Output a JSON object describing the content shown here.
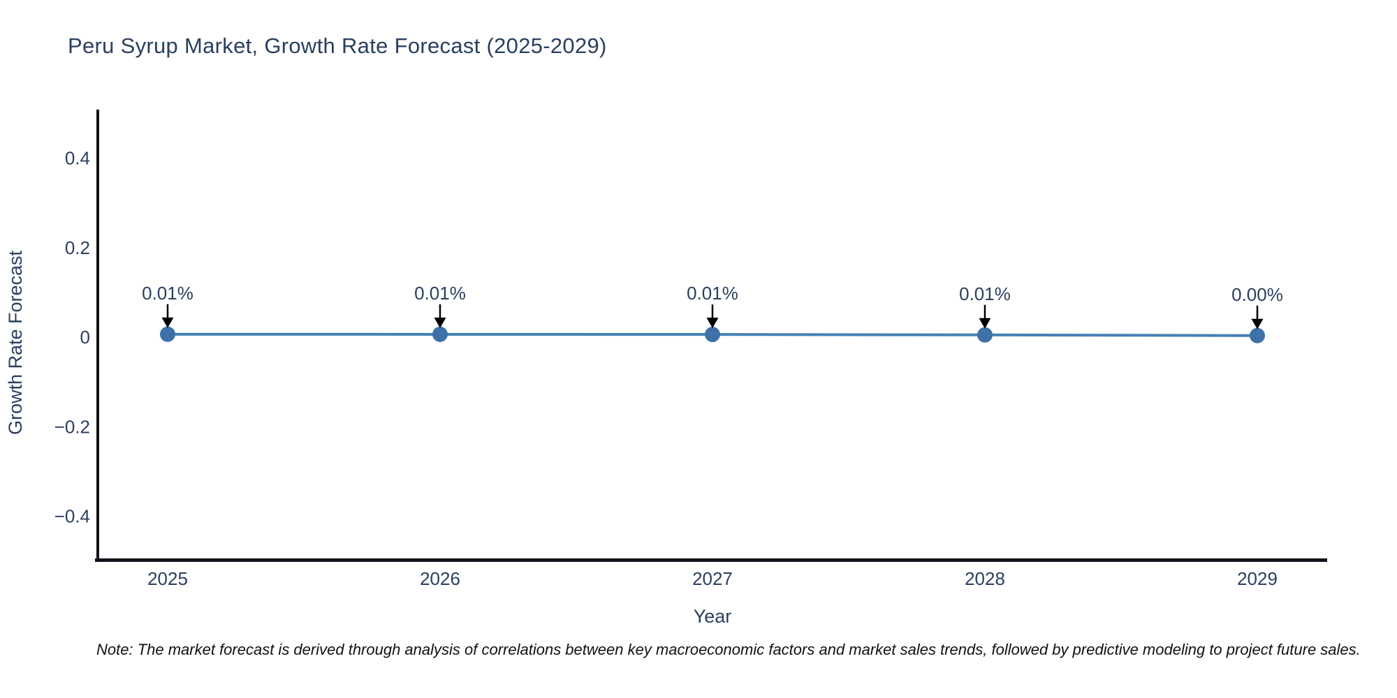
{
  "title": "Peru Syrup Market, Growth Rate Forecast (2025-2029)",
  "note": "Note: The market forecast is derived through analysis of correlations between key macroeconomic factors and market sales trends, followed by predictive modeling to project future sales.",
  "chart_data": {
    "type": "line",
    "title": "Peru Syrup Market, Growth Rate Forecast (2025-2029)",
    "xlabel": "Year",
    "ylabel": "Growth Rate Forecast",
    "x": [
      2025,
      2026,
      2027,
      2028,
      2029
    ],
    "series": [
      {
        "name": "Growth Rate Forecast",
        "values": [
          0.0065,
          0.0063,
          0.006,
          0.005,
          0.0035
        ],
        "point_labels": [
          "0.01%",
          "0.01%",
          "0.01%",
          "0.01%",
          "0.00%"
        ]
      }
    ],
    "xtick_labels": [
      "2025",
      "2026",
      "2027",
      "2028",
      "2029"
    ],
    "yticks": [
      -0.4,
      -0.2,
      0,
      0.2,
      0.4
    ],
    "ytick_labels": [
      "−0.4",
      "−0.2",
      "0",
      "0.2",
      "0.4"
    ],
    "ylim": [
      -0.5,
      0.51
    ],
    "grid": false,
    "legend_position": "none",
    "annotation_style": "down-arrow",
    "colors": {
      "line": "#4580b4",
      "marker": "#3d71a8",
      "axis": "#11131a",
      "text": "#2a3f5f",
      "arrow": "#000000",
      "note_text": "#111111",
      "background": "#ffffff"
    }
  }
}
